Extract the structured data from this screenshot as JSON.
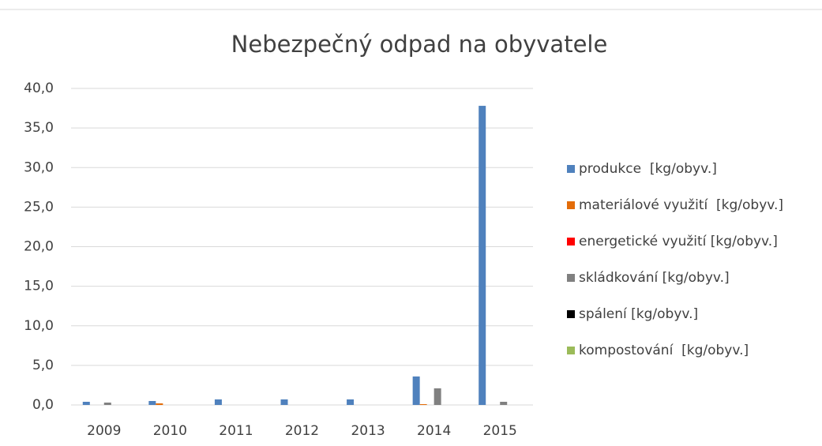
{
  "chart_data": {
    "type": "bar",
    "title": "Nebezpečný odpad na obyvatele",
    "categories": [
      "2009",
      "2010",
      "2011",
      "2012",
      "2013",
      "2014",
      "2015"
    ],
    "series": [
      {
        "name": "produkce  [kg/obyv.]",
        "color": "#4f81bd",
        "values": [
          0.4,
          0.5,
          0.7,
          0.7,
          0.7,
          3.6,
          37.8
        ]
      },
      {
        "name": "materiálové využití  [kg/obyv.]",
        "color": "#e36c09",
        "values": [
          0,
          0.2,
          0,
          0,
          0,
          0.1,
          0
        ]
      },
      {
        "name": "energetické využití [kg/obyv.]",
        "color": "#ff0000",
        "values": [
          0,
          0,
          0,
          0,
          0,
          0,
          0
        ]
      },
      {
        "name": "skládkování [kg/obyv.]",
        "color": "#808080",
        "values": [
          0.3,
          0,
          0,
          0,
          0,
          2.1,
          0.4
        ]
      },
      {
        "name": "spálení [kg/obyv.]",
        "color": "#000000",
        "values": [
          0,
          0,
          0,
          0,
          0,
          0,
          0
        ]
      },
      {
        "name": "kompostování  [kg/obyv.]",
        "color": "#9bbb59",
        "values": [
          0,
          0,
          0,
          0,
          0,
          0,
          0
        ]
      }
    ],
    "ylim": [
      0,
      40
    ],
    "yticks": [
      {
        "value": 0,
        "label": "0,0"
      },
      {
        "value": 5,
        "label": "5,0"
      },
      {
        "value": 10,
        "label": "10,0"
      },
      {
        "value": 15,
        "label": "15,0"
      },
      {
        "value": 20,
        "label": "20,0"
      },
      {
        "value": 25,
        "label": "25,0"
      },
      {
        "value": 30,
        "label": "30,0"
      },
      {
        "value": 35,
        "label": "35,0"
      },
      {
        "value": 40,
        "label": "40,0"
      }
    ],
    "grid": true,
    "legend": "right"
  }
}
